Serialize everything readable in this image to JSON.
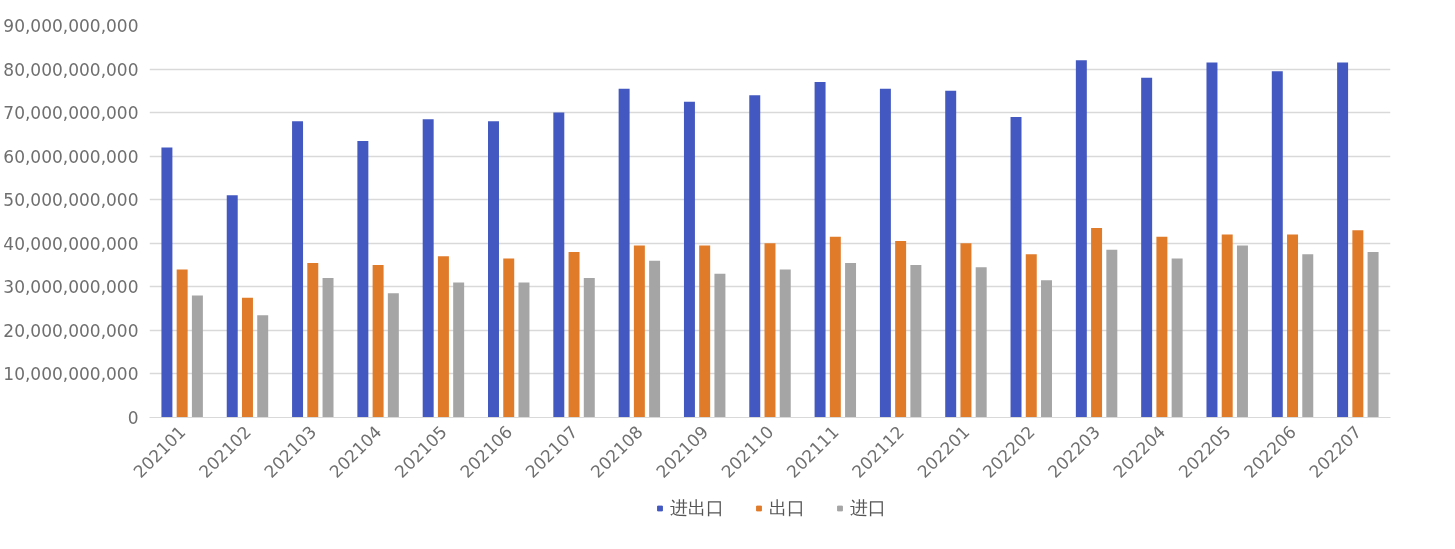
{
  "chart_data": {
    "type": "bar",
    "categories": [
      "202101",
      "202102",
      "202103",
      "202104",
      "202105",
      "202106",
      "202107",
      "202108",
      "202109",
      "202110",
      "202111",
      "202112",
      "202201",
      "202202",
      "202203",
      "202204",
      "202205",
      "202206",
      "202207"
    ],
    "series": [
      {
        "name": "进出口",
        "color": "#4358c0",
        "values": [
          62000000000,
          51000000000,
          68000000000,
          63500000000,
          68500000000,
          68000000000,
          70000000000,
          75500000000,
          72500000000,
          74000000000,
          77000000000,
          75500000000,
          75000000000,
          69000000000,
          82000000000,
          78000000000,
          81500000000,
          79500000000,
          81500000000
        ]
      },
      {
        "name": "出口",
        "color": "#e07b2a",
        "values": [
          34000000000,
          27500000000,
          35500000000,
          35000000000,
          37000000000,
          36500000000,
          38000000000,
          39500000000,
          39500000000,
          40000000000,
          41500000000,
          40500000000,
          40000000000,
          37500000000,
          43500000000,
          41500000000,
          42000000000,
          42000000000,
          43000000000
        ]
      },
      {
        "name": "进口",
        "color": "#a5a5a5",
        "values": [
          28000000000,
          23500000000,
          32000000000,
          28500000000,
          31000000000,
          31000000000,
          32000000000,
          36000000000,
          33000000000,
          34000000000,
          35500000000,
          35000000000,
          34500000000,
          31500000000,
          38500000000,
          36500000000,
          39500000000,
          37500000000,
          38000000000
        ]
      }
    ],
    "ylim": [
      0,
      90000000000
    ],
    "yticks": [
      {
        "value": 0,
        "label": "0"
      },
      {
        "value": 10000000000,
        "label": "10,000,000,000"
      },
      {
        "value": 20000000000,
        "label": "20,000,000,000"
      },
      {
        "value": 30000000000,
        "label": "30,000,000,000"
      },
      {
        "value": 40000000000,
        "label": "40,000,000,000"
      },
      {
        "value": 50000000000,
        "label": "50,000,000,000"
      },
      {
        "value": 60000000000,
        "label": "60,000,000,000"
      },
      {
        "value": 70000000000,
        "label": "70,000,000,000"
      },
      {
        "value": 80000000000,
        "label": "80,000,000,000"
      },
      {
        "value": 90000000000,
        "label": "90,000,000,000"
      }
    ],
    "grid": "y",
    "legend": "bottom"
  }
}
